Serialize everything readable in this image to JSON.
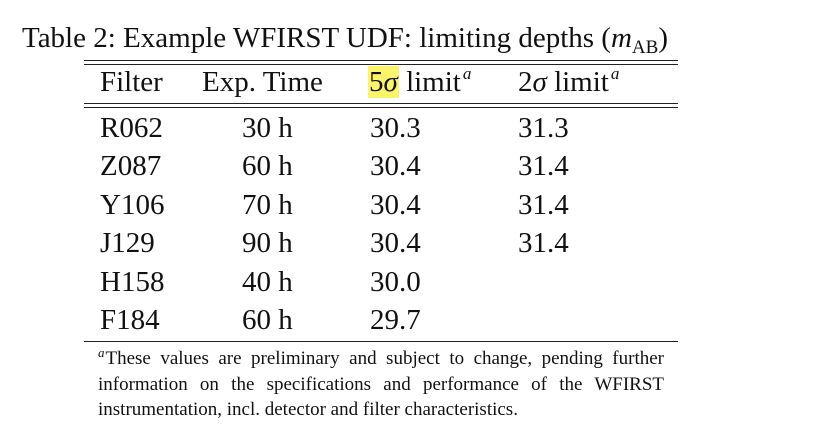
{
  "caption": {
    "prefix": "Table 2: Example WFIRST UDF: limiting depths (",
    "math_var": "m",
    "math_sub": "AB",
    "suffix": ")"
  },
  "table": {
    "headers": {
      "filter": "Filter",
      "exp_time": "Exp. Time",
      "five_sigma_num": "5",
      "five_sigma_sym": "σ",
      "five_sigma_text": " limit",
      "two_sigma_num": "2",
      "two_sigma_sym": "σ",
      "two_sigma_text": " limit",
      "footnote_mark": "a"
    },
    "rows": [
      {
        "filter": "R062",
        "exp_time": "30 h",
        "limit_5sigma": "30.3",
        "limit_2sigma": "31.3"
      },
      {
        "filter": "Z087",
        "exp_time": "60 h",
        "limit_5sigma": "30.4",
        "limit_2sigma": "31.4"
      },
      {
        "filter": "Y106",
        "exp_time": "70 h",
        "limit_5sigma": "30.4",
        "limit_2sigma": "31.4"
      },
      {
        "filter": "J129",
        "exp_time": "90 h",
        "limit_5sigma": "30.4",
        "limit_2sigma": "31.4"
      },
      {
        "filter": "H158",
        "exp_time": "40 h",
        "limit_5sigma": "30.0",
        "limit_2sigma": ""
      },
      {
        "filter": "F184",
        "exp_time": "60 h",
        "limit_5sigma": "29.7",
        "limit_2sigma": ""
      }
    ]
  },
  "footnote": {
    "mark": "a",
    "text": "These values are preliminary and subject to change, pending further information on the specifications and performance of the WFIRST instrumentation, incl. detector and filter characteristics."
  },
  "highlight_color": "#fbf46b"
}
